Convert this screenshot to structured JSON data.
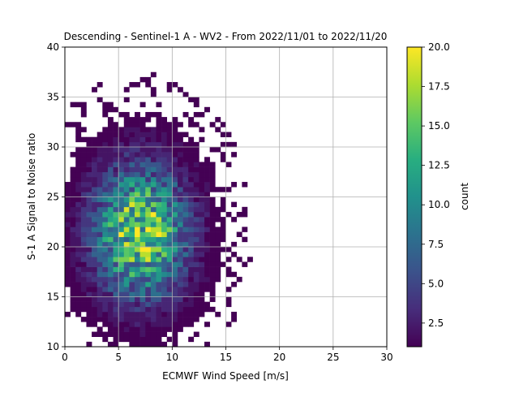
{
  "chart_data": {
    "type": "heatmap",
    "title": "Descending - Sentinel-1 A - WV2 - From 2022/11/01 to 2022/11/20",
    "xlabel": "ECMWF Wind Speed [m/s]",
    "ylabel": "S-1 A Signal to Noise ratio",
    "xlim": [
      0,
      30
    ],
    "ylim": [
      10,
      40
    ],
    "x_ticks": [
      "0",
      "5",
      "10",
      "15",
      "20",
      "25",
      "30"
    ],
    "y_ticks": [
      "10",
      "15",
      "20",
      "25",
      "30",
      "35",
      "40"
    ],
    "grid": true,
    "bin_width_x": 0.5,
    "bin_width_y": 0.5,
    "colormap": "viridis",
    "colorbar": {
      "label": "count",
      "range": [
        1,
        20
      ],
      "ticks": [
        "2.5",
        "5.0",
        "7.5",
        "10.0",
        "12.5",
        "15.0",
        "17.5",
        "20.0"
      ]
    },
    "density_model": {
      "center_x": 7.0,
      "center_y": 21.5,
      "spread_x": 3.0,
      "spread_y": 4.5,
      "peak_count": 18,
      "peak_bin": [
        7.0,
        19.0
      ]
    }
  }
}
